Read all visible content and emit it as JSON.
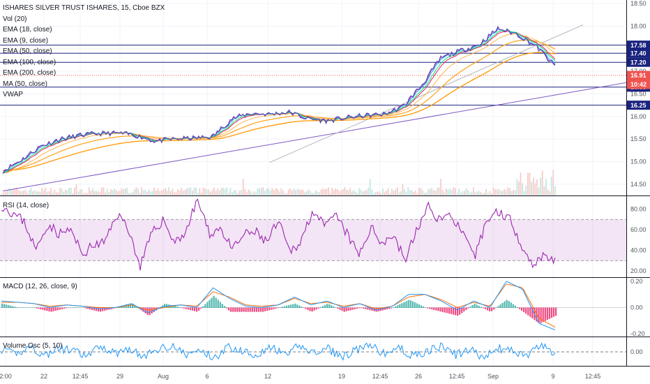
{
  "legend": {
    "title": "ISHARES SILVER TRUST ISHARES, 15, Cboe BZX",
    "vol": "Vol (20)",
    "ema18": "EMA (18, close)",
    "ema9": "EMA (9, close)",
    "ema50": "EMA (50, close)",
    "ema100": "EMA (100, close)",
    "ema200": "EMA (200, close)",
    "ma50": "MA (50, close)",
    "vwap": "VWAP"
  },
  "panes": {
    "rsi": "RSI (14, close)",
    "macd": "MACD (12, 26, close, 9)",
    "volosc": "Volume Osc (5, 10)"
  },
  "colors": {
    "price_up": "#26a69a",
    "price_down": "#ef5350",
    "ema9": "#2196f3",
    "ema18": "#00e676",
    "ema50": "#ffb74d",
    "ema100": "#ffa726",
    "ema200": "#ff9800",
    "ma50": "#e91e63",
    "vwap": "#9c27b0",
    "rsi": "#9c27b0",
    "rsi_band": "#9c27b0",
    "macd": "#2196f3",
    "signal": "#ff6d00",
    "hist_pos": "#26a69a",
    "hist_neg": "#e91e63",
    "volosc": "#2196f3",
    "hline": "#1a237e",
    "current_price": "#ef5350",
    "trendline": "#7e57c2",
    "volume": "#e0b0ae"
  },
  "chart_data": [
    {
      "type": "line",
      "pane": "price",
      "title": "ISHARES SILVER TRUST ISHARES, 15, Cboe BZX",
      "yticks": [
        18.5,
        18.0,
        17.5,
        17.0,
        16.5,
        16.0,
        15.5,
        15.0,
        14.5
      ],
      "ylim": [
        14.25,
        18.58
      ],
      "x_tick_labels": [
        "2:00",
        "22",
        "12:45",
        "29",
        "Aug",
        "6",
        "12",
        "19",
        "12:45",
        "26",
        "12:45",
        "Sep",
        "9",
        "12:45"
      ],
      "series": [
        {
          "name": "close",
          "values": [
            14.8,
            15.05,
            15.35,
            15.5,
            15.58,
            15.62,
            15.63,
            15.58,
            15.45,
            15.5,
            15.52,
            15.55,
            15.95,
            16.07,
            16.05,
            16.1,
            15.95,
            15.9,
            15.97,
            16.02,
            16.05,
            16.22,
            16.7,
            17.3,
            17.45,
            17.6,
            17.95,
            17.82,
            17.55,
            17.1
          ]
        }
      ],
      "horizontal_levels": [
        17.58,
        17.4,
        17.2,
        16.91,
        16.65,
        16.25
      ],
      "current_price": 16.91,
      "countdown": "10:42",
      "trendlines": [
        {
          "from": [
            0,
            14.35
          ],
          "to": [
            30,
            16.75
          ]
        },
        {
          "from": [
            14,
            14.98
          ],
          "to": [
            29,
            18.03
          ]
        }
      ]
    },
    {
      "type": "line",
      "pane": "rsi",
      "title": "RSI (14, close)",
      "yticks": [
        80.0,
        60.0,
        40.0,
        20.0
      ],
      "bands": [
        70,
        30
      ],
      "ylim": [
        14,
        92
      ],
      "series": [
        {
          "name": "RSI (14, close)",
          "values": [
            84,
            76,
            68,
            40,
            66,
            56,
            60,
            36,
            45,
            48,
            76,
            62,
            24,
            55,
            70,
            48,
            58,
            90,
            56,
            62,
            40,
            55,
            58,
            48,
            68,
            38,
            50,
            80,
            62,
            74,
            55,
            35,
            62,
            48,
            55,
            30,
            60,
            82,
            70,
            75,
            55,
            32,
            68,
            78,
            72,
            48,
            26,
            36,
            30
          ]
        }
      ]
    },
    {
      "type": "line",
      "pane": "macd",
      "title": "MACD (12, 26, close, 9)",
      "yticks": [
        0.2,
        0.0,
        -0.2
      ],
      "ylim": [
        -0.22,
        0.22
      ],
      "series": [
        {
          "name": "MACD",
          "values": [
            0.05,
            0.04,
            0.03,
            0.0,
            0.02,
            0.01,
            -0.01,
            0.0,
            0.03,
            -0.04,
            0.01,
            0.02,
            0.0,
            0.15,
            0.07,
            0.01,
            0.0,
            0.02,
            0.08,
            0.02,
            0.05,
            0.0,
            0.03,
            -0.02,
            0.01,
            0.1,
            0.1,
            0.05,
            -0.02,
            0.05,
            0.0,
            0.2,
            0.14,
            -0.12,
            -0.17
          ]
        },
        {
          "name": "Signal",
          "values": [
            0.04,
            0.04,
            0.03,
            0.01,
            0.02,
            0.01,
            0.0,
            0.0,
            0.02,
            -0.02,
            0.0,
            0.02,
            0.01,
            0.12,
            0.08,
            0.02,
            0.01,
            0.02,
            0.07,
            0.03,
            0.04,
            0.01,
            0.03,
            -0.01,
            0.01,
            0.08,
            0.1,
            0.06,
            0.0,
            0.04,
            0.01,
            0.18,
            0.15,
            -0.08,
            -0.15
          ]
        }
      ]
    },
    {
      "type": "line",
      "pane": "volosc",
      "title": "Volume Osc (5, 10)",
      "yticks": [
        0.0
      ],
      "ylim": [
        -50,
        50
      ],
      "series": [
        {
          "name": "Volume Osc (5, 10)",
          "values": [
            8,
            -10,
            20,
            -15,
            12,
            5,
            -18,
            22,
            -6,
            14,
            -20,
            10,
            25,
            -12,
            6,
            -22,
            18,
            4,
            -9,
            16,
            -14,
            24,
            -5,
            11,
            -19,
            7,
            21,
            -8,
            15,
            -16,
            3,
            19,
            -11,
            9,
            -21,
            13,
            2,
            -13,
            23,
            -7
          ]
        }
      ]
    }
  ]
}
